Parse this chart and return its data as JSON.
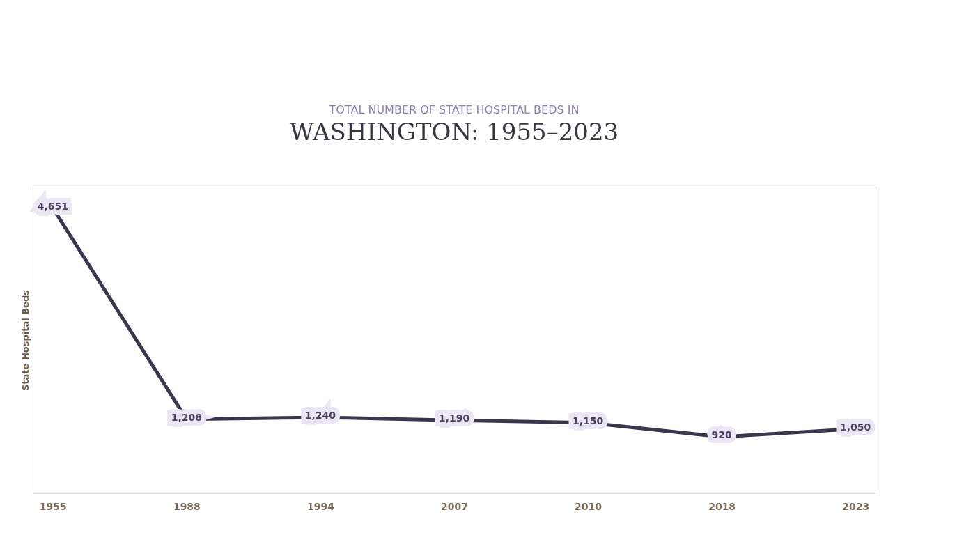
{
  "chart_data": {
    "type": "line",
    "title": "TOTAL NUMBER OF STATE HOSPITAL BEDS IN",
    "subtitle": "WASHINGTON: 1955–2023",
    "ylabel": "State Hospital Beds",
    "categories": [
      "1955",
      "1988",
      "1994",
      "2007",
      "2010",
      "2018",
      "2023"
    ],
    "series": [
      {
        "color": "#3d3550",
        "values": [
          4651,
          1208,
          1240,
          1190,
          1150,
          920,
          1050
        ],
        "value_labels": [
          "4,651",
          "1,208",
          "1,240",
          "1,190",
          "1,150",
          "920",
          "1,050"
        ]
      }
    ],
    "grid": false,
    "legend": false,
    "line_style": "solid",
    "tick_labels": "x"
  }
}
